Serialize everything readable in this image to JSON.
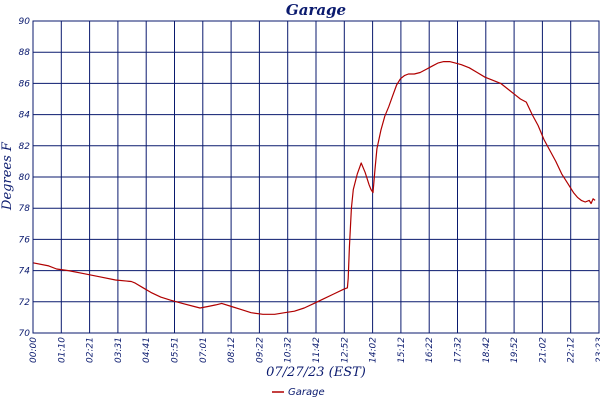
{
  "chart_data": {
    "type": "line",
    "title": "Garage",
    "xlabel": "07/27/23 (EST)",
    "ylabel": "Degrees F",
    "ylim": [
      70,
      90
    ],
    "yticks": [
      70,
      72,
      74,
      76,
      78,
      80,
      82,
      84,
      86,
      88,
      90
    ],
    "xlim_minutes": [
      0,
      1440
    ],
    "xticks": [
      "00:00",
      "01:10",
      "02:21",
      "03:31",
      "04:41",
      "05:51",
      "07:01",
      "08:12",
      "09:22",
      "10:32",
      "11:42",
      "12:52",
      "14:02",
      "15:12",
      "16:22",
      "17:32",
      "18:42",
      "19:52",
      "21:02",
      "22:12",
      "23:23"
    ],
    "grid": true,
    "legend_position": "bottom-center",
    "series": [
      {
        "name": "Garage",
        "color": "#b00000",
        "x": [
          "00:00",
          "00:40",
          "01:00",
          "01:30",
          "02:10",
          "02:50",
          "03:30",
          "04:10",
          "04:20",
          "04:40",
          "05:00",
          "05:25",
          "05:50",
          "06:20",
          "06:50",
          "07:05",
          "07:25",
          "07:45",
          "08:00",
          "08:25",
          "08:50",
          "09:15",
          "09:45",
          "10:15",
          "10:40",
          "11:05",
          "11:30",
          "11:55",
          "12:20",
          "12:45",
          "13:10",
          "13:20",
          "13:22",
          "13:25",
          "13:30",
          "13:35",
          "13:45",
          "13:55",
          "14:05",
          "14:15",
          "14:20",
          "14:25",
          "14:30",
          "14:35",
          "14:45",
          "14:55",
          "15:05",
          "15:15",
          "15:25",
          "15:35",
          "15:45",
          "15:55",
          "16:10",
          "16:25",
          "16:40",
          "16:55",
          "17:10",
          "17:25",
          "17:40",
          "17:55",
          "18:10",
          "18:30",
          "18:50",
          "19:10",
          "19:30",
          "19:50",
          "20:10",
          "20:25",
          "20:40",
          "20:55",
          "21:10",
          "21:25",
          "21:40",
          "21:55",
          "22:10",
          "22:25",
          "22:40",
          "22:55",
          "23:05",
          "23:15",
          "23:25",
          "23:35",
          "23:40",
          "23:45",
          "23:50"
        ],
        "values": [
          74.5,
          74.3,
          74.1,
          74.0,
          73.8,
          73.6,
          73.4,
          73.3,
          73.2,
          72.9,
          72.6,
          72.3,
          72.1,
          71.9,
          71.7,
          71.6,
          71.7,
          71.8,
          71.9,
          71.7,
          71.5,
          71.3,
          71.2,
          71.2,
          71.3,
          71.4,
          71.6,
          71.9,
          72.2,
          72.5,
          72.8,
          72.9,
          73.5,
          75.5,
          78.0,
          79.2,
          80.2,
          80.9,
          80.3,
          79.5,
          79.2,
          79.0,
          80.5,
          81.8,
          83.0,
          83.9,
          84.5,
          85.2,
          85.9,
          86.3,
          86.5,
          86.6,
          86.6,
          86.7,
          86.9,
          87.1,
          87.3,
          87.4,
          87.4,
          87.3,
          87.2,
          87.0,
          86.7,
          86.4,
          86.2,
          86.0,
          85.6,
          85.3,
          85.0,
          84.8,
          84.0,
          83.3,
          82.4,
          81.7,
          81.0,
          80.2,
          79.6,
          79.0,
          78.7,
          78.5,
          78.4,
          78.5,
          78.3,
          78.6,
          78.5
        ]
      }
    ]
  }
}
